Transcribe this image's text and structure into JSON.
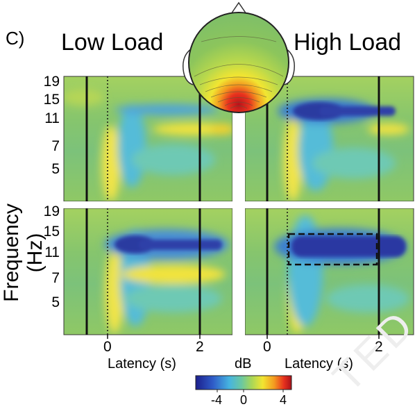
{
  "figure": {
    "panel_label": "C)",
    "conditions": {
      "low": "Low Load",
      "high": "High Load"
    },
    "y_axis": {
      "label": "Frequency (Hz)",
      "ticks": [
        "19",
        "15",
        "11",
        "7",
        "5"
      ]
    },
    "x_axis": {
      "label": "Latency (s)",
      "ticks": [
        "0",
        "2"
      ]
    },
    "colorbar": {
      "label": "dB",
      "ticks": [
        "-4",
        "0",
        "4"
      ],
      "colors": [
        "#1c1f8c",
        "#2f5cc8",
        "#46b4e0",
        "#6cc8a0",
        "#a6d65a",
        "#f2e531",
        "#f39a20",
        "#e8321e",
        "#a8101a"
      ]
    },
    "watermark": "TED"
  },
  "colors": {
    "background_map": "#8cc46a",
    "desync": "#2c3aa0",
    "sync": "#f2e23a",
    "scalp_hot": "#d92a1c"
  }
}
